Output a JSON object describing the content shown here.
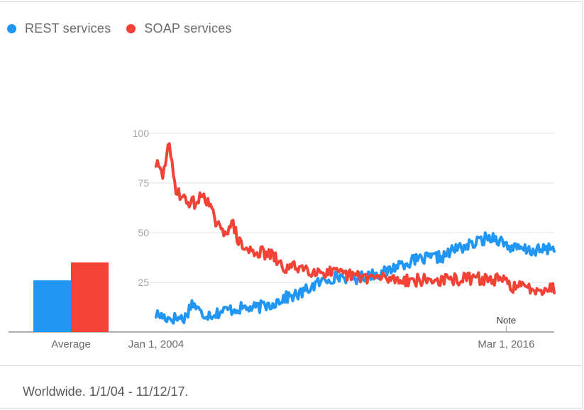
{
  "legend": {
    "rest_label": "REST services",
    "soap_label": "SOAP services"
  },
  "footer": {
    "text": "Worldwide. 1/1/04 - 11/12/17."
  },
  "chart_data": {
    "type": "line",
    "title": "",
    "xlabel": "",
    "ylabel": "",
    "ylim": [
      0,
      100
    ],
    "yticks": [
      25,
      50,
      75,
      100
    ],
    "grid": true,
    "legend_position": "top-left",
    "x_tick_labels": [
      "Jan 1, 2004",
      "Mar 1, 2016"
    ],
    "annotation": {
      "label": "Note",
      "date": "2016-03"
    },
    "average": {
      "label": "Average",
      "values": {
        "REST services": 26,
        "SOAP services": 35
      }
    },
    "x_range": [
      "2004-01",
      "2017-11"
    ],
    "series": [
      {
        "name": "REST services",
        "color": "#2196f3",
        "anchors": [
          [
            "2004-01",
            9
          ],
          [
            "2004-06",
            7
          ],
          [
            "2005-01",
            7
          ],
          [
            "2005-04",
            15
          ],
          [
            "2005-08",
            9
          ],
          [
            "2006-01",
            9
          ],
          [
            "2006-06",
            11
          ],
          [
            "2007-01",
            12
          ],
          [
            "2007-06",
            12
          ],
          [
            "2008-01",
            14
          ],
          [
            "2008-06",
            17
          ],
          [
            "2009-01",
            19
          ],
          [
            "2009-06",
            23
          ],
          [
            "2010-01",
            27
          ],
          [
            "2010-06",
            28
          ],
          [
            "2011-01",
            27
          ],
          [
            "2011-06",
            29
          ],
          [
            "2012-01",
            30
          ],
          [
            "2012-06",
            34
          ],
          [
            "2013-01",
            36
          ],
          [
            "2013-06",
            37
          ],
          [
            "2014-01",
            38
          ],
          [
            "2014-06",
            42
          ],
          [
            "2015-01",
            44
          ],
          [
            "2015-06",
            47
          ],
          [
            "2015-10",
            48
          ],
          [
            "2016-03",
            44
          ],
          [
            "2016-06",
            42
          ],
          [
            "2017-01",
            41
          ],
          [
            "2017-06",
            41
          ],
          [
            "2017-11",
            43
          ]
        ],
        "noise": 3.0,
        "seed": 17
      },
      {
        "name": "SOAP services",
        "color": "#f44336",
        "anchors": [
          [
            "2004-01",
            85
          ],
          [
            "2004-04",
            78
          ],
          [
            "2004-06",
            96
          ],
          [
            "2004-09",
            73
          ],
          [
            "2005-01",
            66
          ],
          [
            "2005-06",
            65
          ],
          [
            "2005-09",
            70
          ],
          [
            "2006-01",
            58
          ],
          [
            "2006-04",
            50
          ],
          [
            "2006-09",
            54
          ],
          [
            "2006-12",
            44
          ],
          [
            "2007-03",
            41
          ],
          [
            "2007-09",
            40
          ],
          [
            "2008-02",
            38
          ],
          [
            "2008-06",
            32
          ],
          [
            "2009-01",
            33
          ],
          [
            "2009-06",
            31
          ],
          [
            "2010-01",
            30
          ],
          [
            "2010-06",
            29
          ],
          [
            "2011-01",
            28
          ],
          [
            "2012-01",
            27
          ],
          [
            "2013-01",
            26
          ],
          [
            "2014-01",
            26
          ],
          [
            "2015-01",
            27
          ],
          [
            "2016-01",
            26
          ],
          [
            "2016-06",
            23
          ],
          [
            "2017-01",
            22
          ],
          [
            "2017-11",
            22
          ]
        ],
        "noise": 3.2,
        "seed": 29
      }
    ]
  }
}
